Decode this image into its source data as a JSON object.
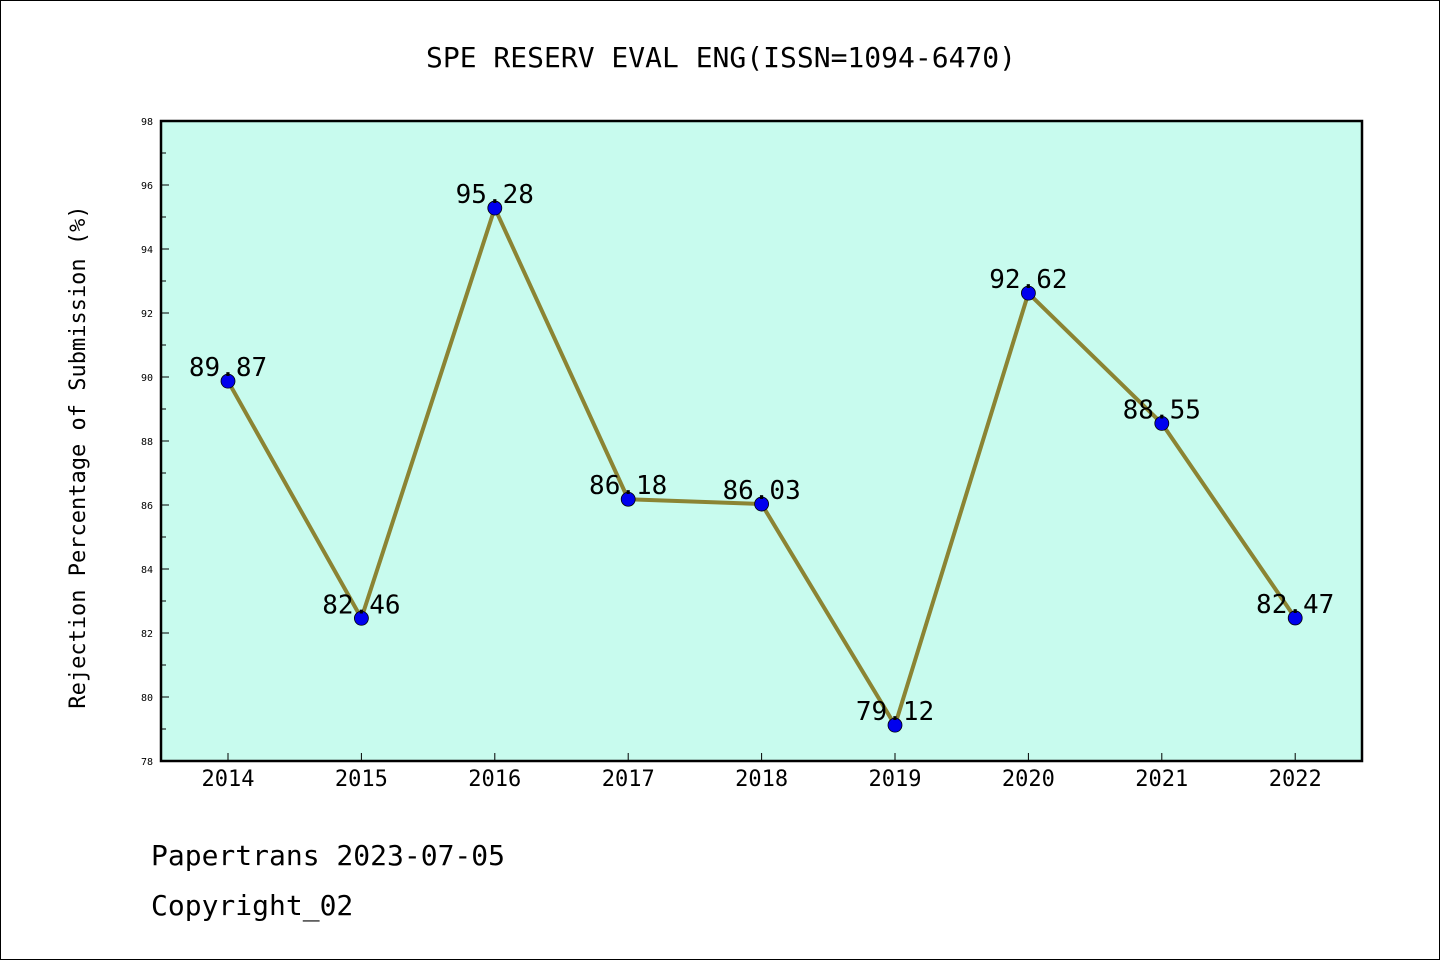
{
  "chart_data": {
    "type": "line",
    "title": "SPE RESERV EVAL ENG(ISSN=1094-6470)",
    "xlabel": "",
    "ylabel": "Rejection Percentage of Submission (%)",
    "categories": [
      "2014",
      "2015",
      "2016",
      "2017",
      "2018",
      "2019",
      "2020",
      "2021",
      "2022"
    ],
    "values": [
      89.87,
      82.46,
      95.28,
      86.18,
      86.03,
      79.12,
      92.62,
      88.55,
      82.47
    ],
    "data_labels": [
      "89.87",
      "82.46",
      "95.28",
      "86.18",
      "86.03",
      "79.12",
      "92.62",
      "88.55",
      "82.47"
    ],
    "ylim": [
      78,
      98
    ],
    "yticks": [
      "78",
      "80",
      "82",
      "84",
      "86",
      "88",
      "90",
      "92",
      "94",
      "96",
      "98"
    ],
    "grid": false,
    "legend": "none"
  },
  "footer": {
    "line1": "Papertrans 2023-07-05",
    "line2": "Copyright_02"
  },
  "colors": {
    "plot_background": "#c8fbee",
    "line": "#8b8433",
    "marker": "#0000ee",
    "axis": "#000000"
  }
}
